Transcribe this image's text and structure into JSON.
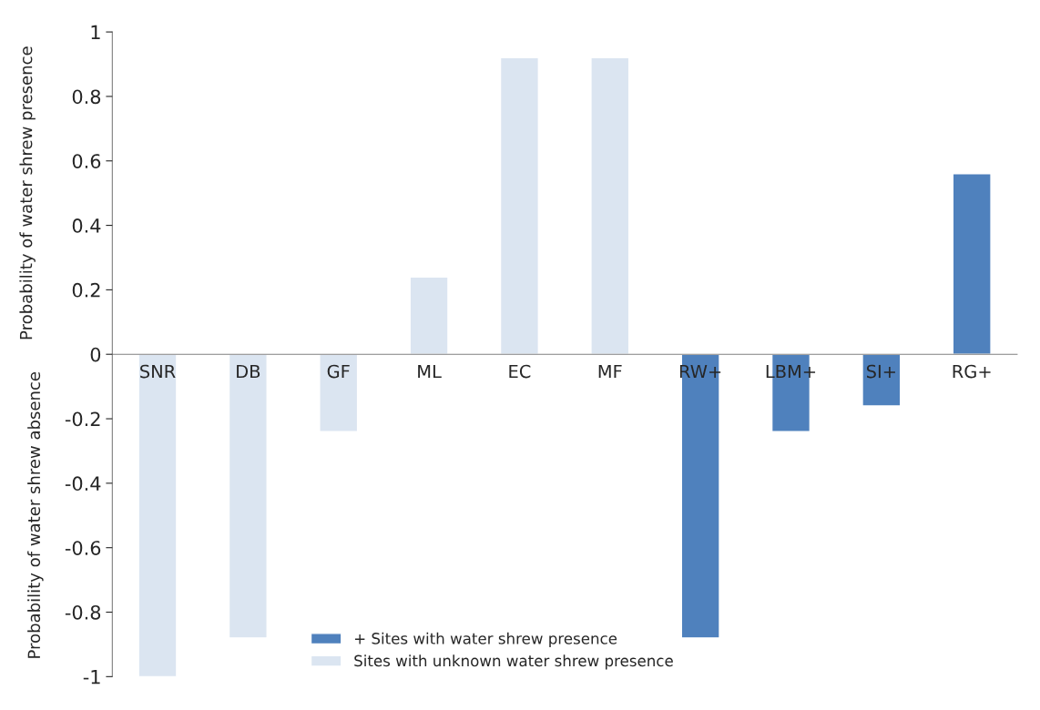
{
  "chart_data": {
    "type": "bar",
    "categories": [
      "SNR",
      "DB",
      "GF",
      "ML",
      "EC",
      "MF",
      "RW+",
      "LBM+",
      "SI+",
      "RG+"
    ],
    "series": [
      {
        "name": "+ Sites with water shrew presence",
        "color": "#4f81bd",
        "values": [
          null,
          null,
          null,
          null,
          null,
          null,
          -0.88,
          -0.24,
          -0.16,
          0.56
        ]
      },
      {
        "name": "Sites with unknown water shrew presence",
        "color": "#dbe5f1",
        "values": [
          -1,
          -0.88,
          -0.24,
          0.24,
          0.92,
          0.92,
          null,
          null,
          null,
          null
        ]
      }
    ],
    "ylabel": "Probability of water shrew presence",
    "annotations": [
      "Probability of water shrew absence"
    ],
    "ylim": [
      -1,
      1
    ],
    "yticks": [
      -1,
      -0.8,
      -0.6,
      -0.4,
      -0.2,
      0,
      0.2,
      0.4,
      0.6,
      0.8,
      1
    ],
    "grid": false,
    "legend": "bottom"
  }
}
